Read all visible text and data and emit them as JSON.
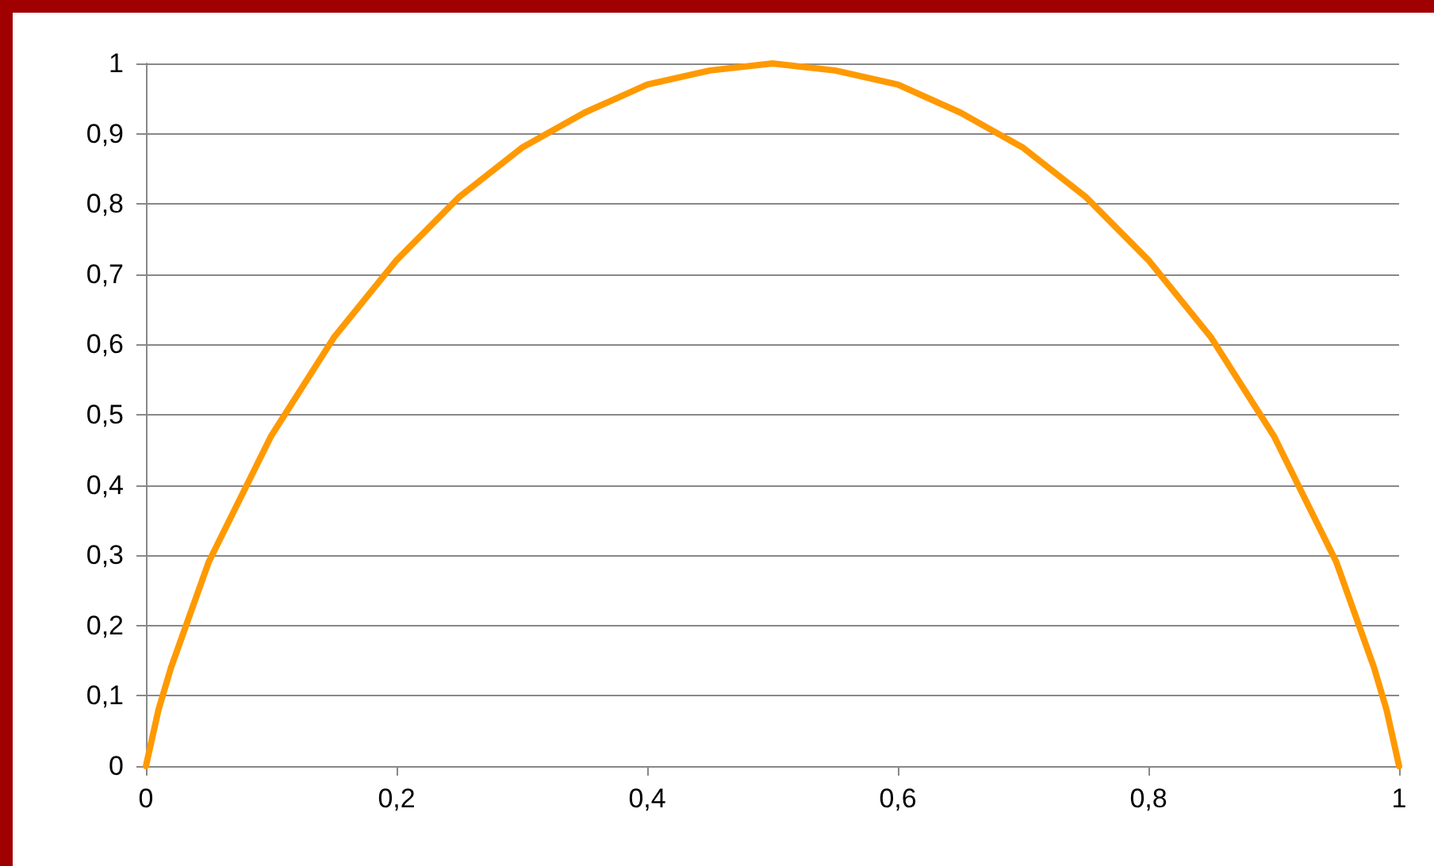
{
  "chart_data": {
    "type": "line",
    "x": [
      0,
      0.01,
      0.02,
      0.03,
      0.05,
      0.075,
      0.1,
      0.125,
      0.15,
      0.2,
      0.25,
      0.3,
      0.35,
      0.4,
      0.45,
      0.5,
      0.55,
      0.6,
      0.65,
      0.7,
      0.75,
      0.8,
      0.85,
      0.875,
      0.9,
      0.925,
      0.95,
      0.97,
      0.98,
      0.99,
      1
    ],
    "series": [
      {
        "color": "#ff9900",
        "values": [
          0,
          0.08,
          0.14,
          0.19,
          0.29,
          0.38,
          0.47,
          0.54,
          0.61,
          0.72,
          0.81,
          0.88,
          0.93,
          0.97,
          0.99,
          1,
          0.99,
          0.97,
          0.93,
          0.88,
          0.81,
          0.72,
          0.61,
          0.54,
          0.47,
          0.38,
          0.29,
          0.19,
          0.14,
          0.08,
          0
        ]
      }
    ],
    "xlim": [
      0,
      1
    ],
    "xticks": [
      {
        "value": 0,
        "label": "0"
      },
      {
        "value": 0.2,
        "label": "0,2"
      },
      {
        "value": 0.4,
        "label": "0,4"
      },
      {
        "value": 0.6,
        "label": "0,6"
      },
      {
        "value": 0.8,
        "label": "0,8"
      },
      {
        "value": 1,
        "label": "1"
      }
    ],
    "ylim": [
      0,
      1
    ],
    "yticks": [
      {
        "value": 0,
        "label": "0"
      },
      {
        "value": 0.1,
        "label": "0,1"
      },
      {
        "value": 0.2,
        "label": "0,2"
      },
      {
        "value": 0.3,
        "label": "0,3"
      },
      {
        "value": 0.4,
        "label": "0,4"
      },
      {
        "value": 0.5,
        "label": "0,5"
      },
      {
        "value": 0.6,
        "label": "0,6"
      },
      {
        "value": 0.7,
        "label": "0,7"
      },
      {
        "value": 0.8,
        "label": "0,8"
      },
      {
        "value": 0.9,
        "label": "0,9"
      },
      {
        "value": 1,
        "label": "1"
      }
    ],
    "grid": "y",
    "marker": "none",
    "line_style": "solid"
  }
}
